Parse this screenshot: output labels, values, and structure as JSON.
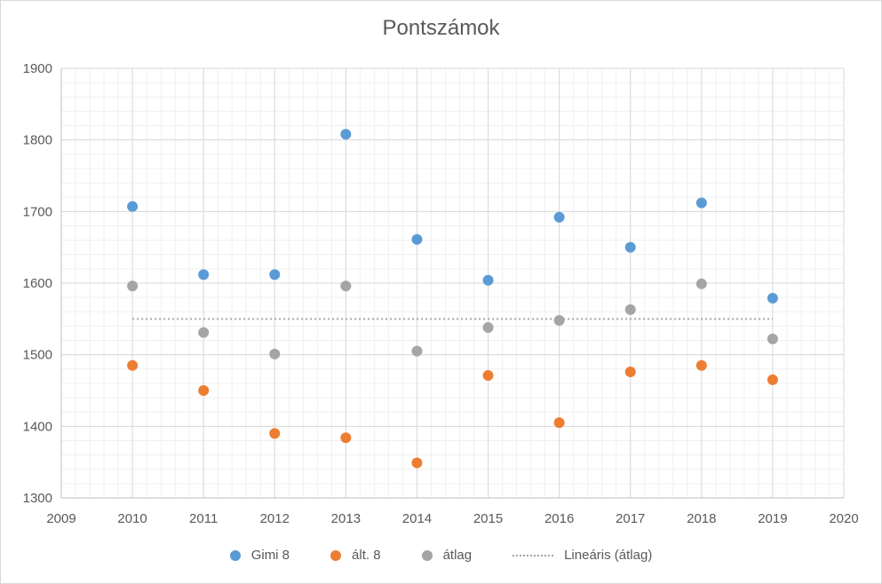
{
  "chart_data": {
    "type": "scatter",
    "title": "Pontszámok",
    "xlabel": "",
    "ylabel": "",
    "xlim": [
      2009,
      2020
    ],
    "ylim": [
      1300,
      1900
    ],
    "x_ticks": [
      "2009",
      "2010",
      "2011",
      "2012",
      "2013",
      "2014",
      "2015",
      "2016",
      "2017",
      "2018",
      "2019",
      "2020"
    ],
    "y_ticks": [
      "1300",
      "1400",
      "1500",
      "1600",
      "1700",
      "1800",
      "1900"
    ],
    "grid": true,
    "legend_position": "bottom",
    "series": [
      {
        "name": "Gimi 8",
        "color": "#5b9bd5",
        "x": [
          2010,
          2011,
          2012,
          2013,
          2014,
          2015,
          2016,
          2017,
          2018,
          2019
        ],
        "y": [
          1707,
          1612,
          1612,
          1808,
          1661,
          1604,
          1692,
          1650,
          1712,
          1579
        ]
      },
      {
        "name": "ált. 8",
        "color": "#ed7d31",
        "x": [
          2010,
          2011,
          2012,
          2013,
          2014,
          2015,
          2016,
          2017,
          2018,
          2019
        ],
        "y": [
          1485,
          1450,
          1390,
          1384,
          1349,
          1471,
          1405,
          1476,
          1485,
          1465
        ]
      },
      {
        "name": "átlag",
        "color": "#a5a5a5",
        "x": [
          2010,
          2011,
          2012,
          2013,
          2014,
          2015,
          2016,
          2017,
          2018,
          2019
        ],
        "y": [
          1596,
          1531,
          1501,
          1596,
          1505,
          1538,
          1548,
          1563,
          1599,
          1522
        ]
      }
    ],
    "trendline": {
      "name": "Lineáris (átlag)",
      "color": "#a5a5a5",
      "x": [
        2010,
        2019
      ],
      "y": [
        1550,
        1550
      ]
    }
  }
}
